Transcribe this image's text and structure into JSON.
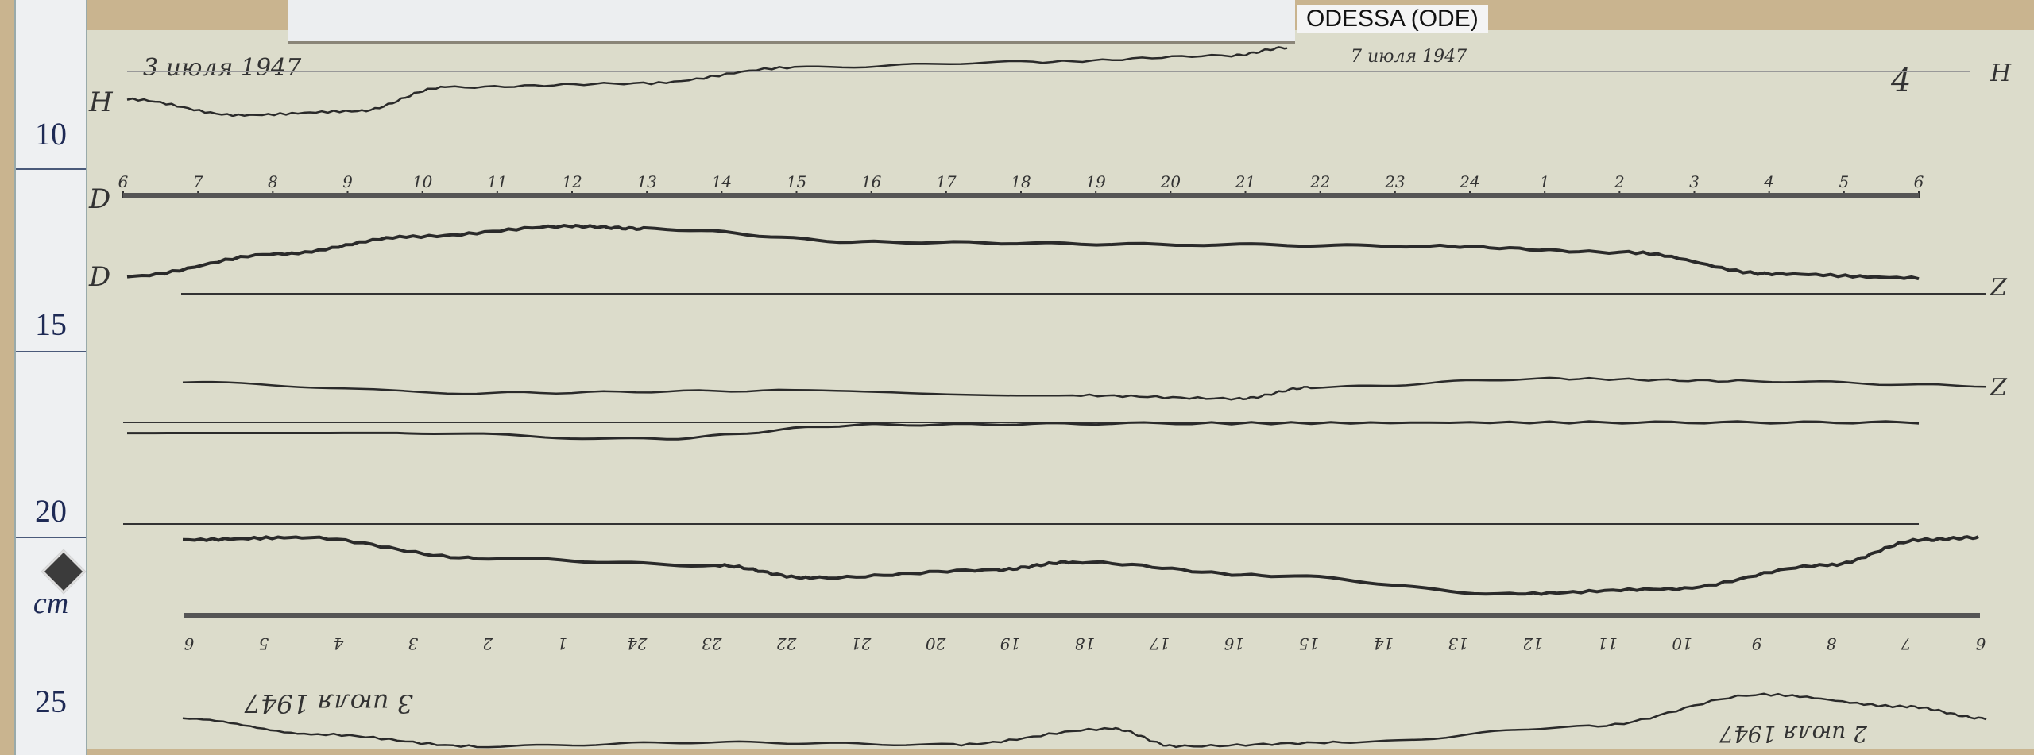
{
  "station_label": "ODESSA (ODE)",
  "ruler": {
    "numbers": [
      "10",
      "15",
      "20",
      "25"
    ],
    "unit": "cm"
  },
  "annotations": {
    "date_top_left": "3 июля 1947",
    "date_top_right": "7 июля 1947",
    "date_bottom": "3 июля 1947",
    "date_bottom_right": "2 июля 1947",
    "mark_right": "4"
  },
  "channel_letters": {
    "h_top": "H",
    "d_axis": "D",
    "d_trace": "D",
    "z": "Z",
    "h_base": "Z",
    "h_right": "H"
  },
  "hour_ticks_top": [
    "6",
    "7",
    "8",
    "9",
    "10",
    "11",
    "12",
    "13",
    "14",
    "15",
    "16",
    "17",
    "18",
    "19",
    "20",
    "21",
    "22",
    "23",
    "24",
    "1",
    "2",
    "3",
    "4",
    "5",
    "6"
  ],
  "hour_ticks_bottom": [
    "6",
    "5",
    "4",
    "3",
    "2",
    "1",
    "24",
    "23",
    "22",
    "21",
    "20",
    "19",
    "18",
    "17",
    "16",
    "15",
    "14",
    "13",
    "12",
    "11",
    "10",
    "9",
    "8",
    "7",
    "6"
  ],
  "colors": {
    "paper": "#dcdccb",
    "trace": "#2a2a2a",
    "ink": "#1e2a55",
    "label_bg": "#f4f4f4"
  }
}
